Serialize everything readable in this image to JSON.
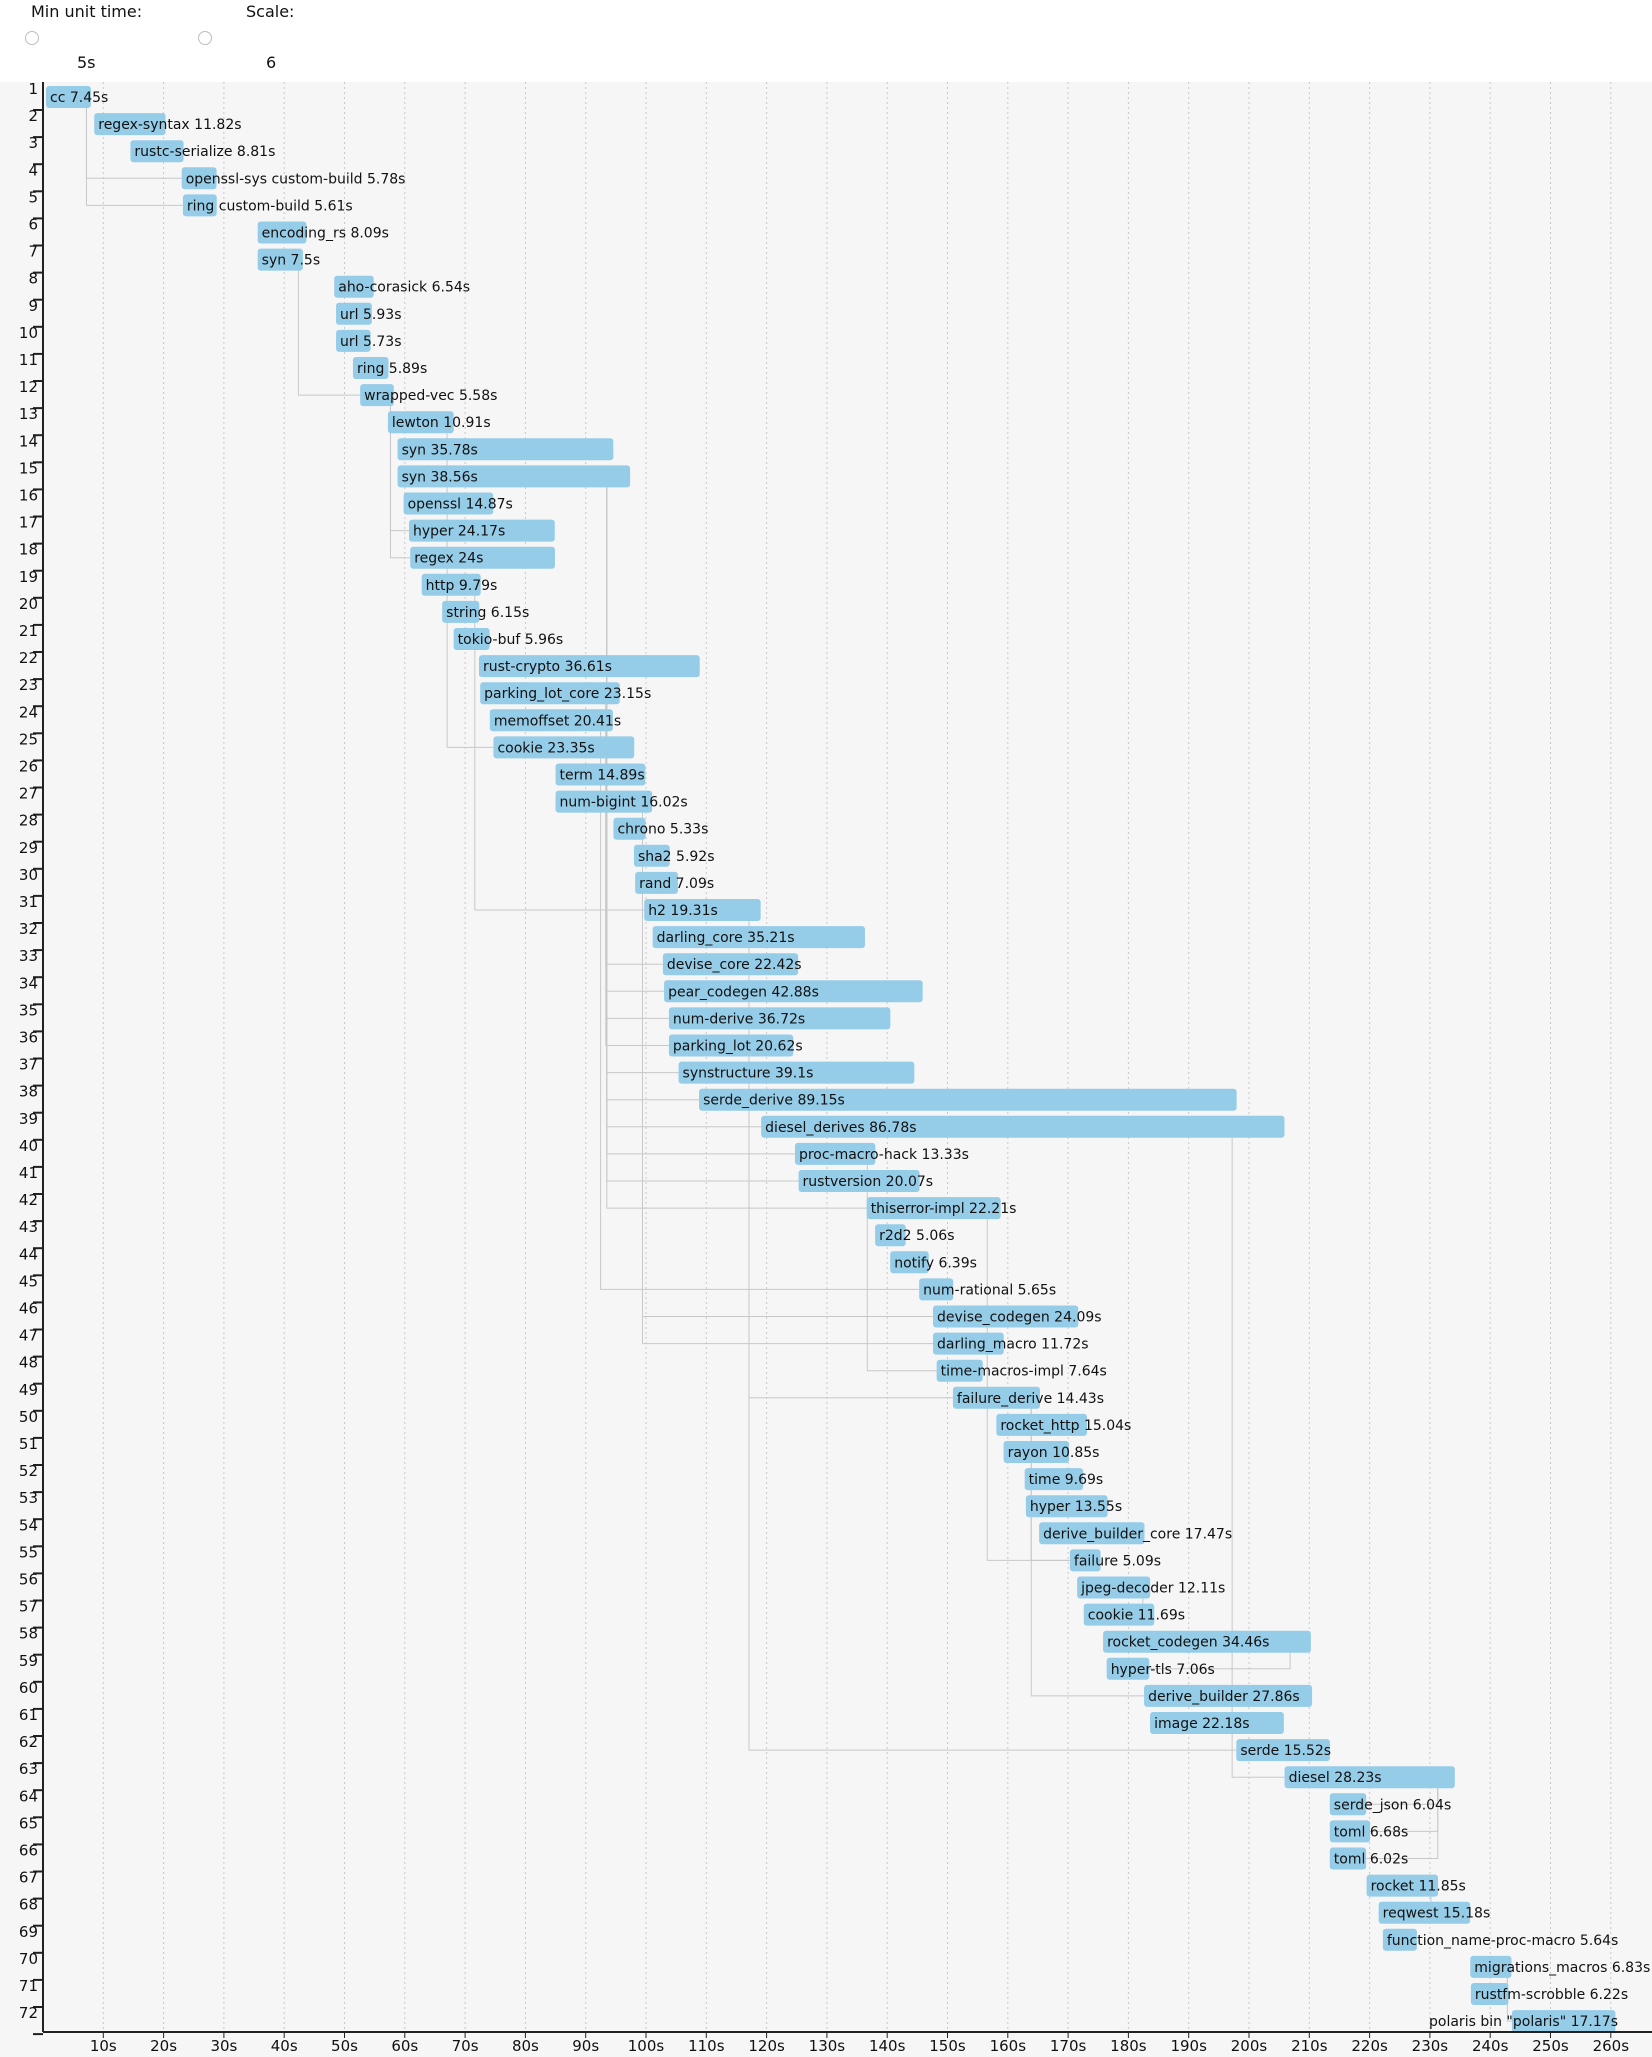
{
  "controls": {
    "min_unit_time_label": "Min unit time:",
    "min_unit_time_value": "5s",
    "scale_label": "Scale:",
    "scale_value": "6"
  },
  "colors": {
    "bar": "#95cce8",
    "background": "#f6f6f6",
    "dependency_line": "#c8c8c8",
    "grid": "#c8c8c8"
  },
  "chart_data": {
    "type": "gantt",
    "title": "",
    "xlabel": "",
    "ylabel": "",
    "xlim": [
      0,
      265
    ],
    "x_ticks": [
      "10s",
      "20s",
      "30s",
      "40s",
      "50s",
      "60s",
      "70s",
      "80s",
      "90s",
      "100s",
      "110s",
      "120s",
      "130s",
      "140s",
      "150s",
      "160s",
      "170s",
      "180s",
      "190s",
      "200s",
      "210s",
      "220s",
      "230s",
      "240s",
      "250s",
      "260s"
    ],
    "x_tick_values": [
      10,
      20,
      30,
      40,
      50,
      60,
      70,
      80,
      90,
      100,
      110,
      120,
      130,
      140,
      150,
      160,
      170,
      180,
      190,
      200,
      210,
      220,
      230,
      240,
      250,
      260
    ],
    "units": [
      {
        "row": 1,
        "name": "cc",
        "start": 0.5,
        "duration": 7.45,
        "label": "cc 7.45s"
      },
      {
        "row": 2,
        "name": "regex-syntax",
        "start": 8.5,
        "duration": 11.82,
        "label": "regex-syntax 11.82s"
      },
      {
        "row": 3,
        "name": "rustc-serialize",
        "start": 14.5,
        "duration": 8.81,
        "label": "rustc-serialize 8.81s"
      },
      {
        "row": 4,
        "name": "openssl-sys custom-build",
        "start": 23.0,
        "duration": 5.78,
        "label": "openssl-sys custom-build 5.78s"
      },
      {
        "row": 5,
        "name": "ring custom-build",
        "start": 23.2,
        "duration": 5.61,
        "label": "ring custom-build 5.61s"
      },
      {
        "row": 6,
        "name": "encoding_rs",
        "start": 35.6,
        "duration": 8.09,
        "label": "encoding_rs 8.09s"
      },
      {
        "row": 7,
        "name": "syn",
        "start": 35.6,
        "duration": 7.5,
        "label": "syn 7.5s"
      },
      {
        "row": 8,
        "name": "aho-corasick",
        "start": 48.3,
        "duration": 6.54,
        "label": "aho-corasick 6.54s"
      },
      {
        "row": 9,
        "name": "url",
        "start": 48.6,
        "duration": 5.93,
        "label": "url 5.93s"
      },
      {
        "row": 10,
        "name": "url",
        "start": 48.6,
        "duration": 5.73,
        "label": "url 5.73s"
      },
      {
        "row": 11,
        "name": "ring",
        "start": 51.4,
        "duration": 5.89,
        "label": "ring 5.89s"
      },
      {
        "row": 12,
        "name": "wrapped-vec",
        "start": 52.6,
        "duration": 5.58,
        "label": "wrapped-vec 5.58s"
      },
      {
        "row": 13,
        "name": "lewton",
        "start": 57.2,
        "duration": 10.91,
        "label": "lewton 10.91s"
      },
      {
        "row": 14,
        "name": "syn",
        "start": 58.8,
        "duration": 35.78,
        "label": "syn 35.78s"
      },
      {
        "row": 15,
        "name": "syn",
        "start": 58.8,
        "duration": 38.56,
        "label": "syn 38.56s"
      },
      {
        "row": 16,
        "name": "openssl",
        "start": 59.8,
        "duration": 14.87,
        "label": "openssl 14.87s"
      },
      {
        "row": 17,
        "name": "hyper",
        "start": 60.7,
        "duration": 24.17,
        "label": "hyper 24.17s"
      },
      {
        "row": 18,
        "name": "regex",
        "start": 60.9,
        "duration": 24.0,
        "label": "regex 24s"
      },
      {
        "row": 19,
        "name": "http",
        "start": 62.8,
        "duration": 9.79,
        "label": "http 9.79s"
      },
      {
        "row": 20,
        "name": "string",
        "start": 66.2,
        "duration": 6.15,
        "label": "string 6.15s"
      },
      {
        "row": 21,
        "name": "tokio-buf",
        "start": 68.1,
        "duration": 5.96,
        "label": "tokio-buf 5.96s"
      },
      {
        "row": 22,
        "name": "rust-crypto",
        "start": 72.3,
        "duration": 36.61,
        "label": "rust-crypto 36.61s"
      },
      {
        "row": 23,
        "name": "parking_lot_core",
        "start": 72.5,
        "duration": 23.15,
        "label": "parking_lot_core 23.15s"
      },
      {
        "row": 24,
        "name": "memoffset",
        "start": 74.1,
        "duration": 20.41,
        "label": "memoffset 20.41s"
      },
      {
        "row": 25,
        "name": "cookie",
        "start": 74.7,
        "duration": 23.35,
        "label": "cookie 23.35s"
      },
      {
        "row": 26,
        "name": "term",
        "start": 85.0,
        "duration": 14.89,
        "label": "term 14.89s"
      },
      {
        "row": 27,
        "name": "num-bigint",
        "start": 85.0,
        "duration": 16.02,
        "label": "num-bigint 16.02s"
      },
      {
        "row": 28,
        "name": "chrono",
        "start": 94.6,
        "duration": 5.33,
        "label": "chrono 5.33s"
      },
      {
        "row": 29,
        "name": "sha2",
        "start": 98.0,
        "duration": 5.92,
        "label": "sha2 5.92s"
      },
      {
        "row": 30,
        "name": "rand",
        "start": 98.2,
        "duration": 7.09,
        "label": "rand 7.09s"
      },
      {
        "row": 31,
        "name": "h2",
        "start": 99.7,
        "duration": 19.31,
        "label": "h2 19.31s"
      },
      {
        "row": 32,
        "name": "darling_core",
        "start": 101.1,
        "duration": 35.21,
        "label": "darling_core 35.21s"
      },
      {
        "row": 33,
        "name": "devise_core",
        "start": 102.8,
        "duration": 22.42,
        "label": "devise_core 22.42s"
      },
      {
        "row": 34,
        "name": "pear_codegen",
        "start": 103.0,
        "duration": 42.88,
        "label": "pear_codegen 42.88s"
      },
      {
        "row": 35,
        "name": "num-derive",
        "start": 103.8,
        "duration": 36.72,
        "label": "num-derive 36.72s"
      },
      {
        "row": 36,
        "name": "parking_lot",
        "start": 103.8,
        "duration": 20.62,
        "label": "parking_lot 20.62s"
      },
      {
        "row": 37,
        "name": "synstructure",
        "start": 105.4,
        "duration": 39.1,
        "label": "synstructure 39.1s"
      },
      {
        "row": 38,
        "name": "serde_derive",
        "start": 108.8,
        "duration": 89.15,
        "label": "serde_derive 89.15s"
      },
      {
        "row": 39,
        "name": "diesel_derives",
        "start": 119.1,
        "duration": 86.78,
        "label": "diesel_derives 86.78s"
      },
      {
        "row": 40,
        "name": "proc-macro-hack",
        "start": 124.7,
        "duration": 13.33,
        "label": "proc-macro-hack 13.33s"
      },
      {
        "row": 41,
        "name": "rustversion",
        "start": 125.3,
        "duration": 20.07,
        "label": "rustversion 20.07s"
      },
      {
        "row": 42,
        "name": "thiserror-impl",
        "start": 136.6,
        "duration": 22.21,
        "label": "thiserror-impl 22.21s"
      },
      {
        "row": 43,
        "name": "r2d2",
        "start": 138.0,
        "duration": 5.06,
        "label": "r2d2 5.06s"
      },
      {
        "row": 44,
        "name": "notify",
        "start": 140.5,
        "duration": 6.39,
        "label": "notify 6.39s"
      },
      {
        "row": 45,
        "name": "num-rational",
        "start": 145.3,
        "duration": 5.65,
        "label": "num-rational 5.65s"
      },
      {
        "row": 46,
        "name": "devise_codegen",
        "start": 147.6,
        "duration": 24.09,
        "label": "devise_codegen 24.09s"
      },
      {
        "row": 47,
        "name": "darling_macro",
        "start": 147.6,
        "duration": 11.72,
        "label": "darling_macro 11.72s"
      },
      {
        "row": 48,
        "name": "time-macros-impl",
        "start": 148.2,
        "duration": 7.64,
        "label": "time-macros-impl 7.64s"
      },
      {
        "row": 49,
        "name": "failure_derive",
        "start": 150.9,
        "duration": 14.43,
        "label": "failure_derive 14.43s"
      },
      {
        "row": 50,
        "name": "rocket_http",
        "start": 158.1,
        "duration": 15.04,
        "label": "rocket_http 15.04s"
      },
      {
        "row": 51,
        "name": "rayon",
        "start": 159.3,
        "duration": 10.85,
        "label": "rayon 10.85s"
      },
      {
        "row": 52,
        "name": "time",
        "start": 162.8,
        "duration": 9.69,
        "label": "time 9.69s"
      },
      {
        "row": 53,
        "name": "hyper",
        "start": 163.0,
        "duration": 13.55,
        "label": "hyper 13.55s"
      },
      {
        "row": 54,
        "name": "derive_builder_core",
        "start": 165.2,
        "duration": 17.47,
        "label": "derive_builder_core 17.47s"
      },
      {
        "row": 55,
        "name": "failure",
        "start": 170.3,
        "duration": 5.09,
        "label": "failure 5.09s"
      },
      {
        "row": 56,
        "name": "jpeg-decoder",
        "start": 171.5,
        "duration": 12.11,
        "label": "jpeg-decoder 12.11s"
      },
      {
        "row": 57,
        "name": "cookie",
        "start": 172.6,
        "duration": 11.69,
        "label": "cookie 11.69s"
      },
      {
        "row": 58,
        "name": "rocket_codegen",
        "start": 175.8,
        "duration": 34.46,
        "label": "rocket_codegen 34.46s"
      },
      {
        "row": 59,
        "name": "hyper-tls",
        "start": 176.4,
        "duration": 7.06,
        "label": "hyper-tls 7.06s"
      },
      {
        "row": 60,
        "name": "derive_builder",
        "start": 182.6,
        "duration": 27.86,
        "label": "derive_builder 27.86s"
      },
      {
        "row": 61,
        "name": "image",
        "start": 183.6,
        "duration": 22.18,
        "label": "image 22.18s"
      },
      {
        "row": 62,
        "name": "serde",
        "start": 197.9,
        "duration": 15.52,
        "label": "serde 15.52s"
      },
      {
        "row": 63,
        "name": "diesel",
        "start": 205.9,
        "duration": 28.23,
        "label": "diesel 28.23s"
      },
      {
        "row": 64,
        "name": "serde_json",
        "start": 213.4,
        "duration": 6.04,
        "label": "serde_json 6.04s"
      },
      {
        "row": 65,
        "name": "toml",
        "start": 213.4,
        "duration": 6.68,
        "label": "toml 6.68s"
      },
      {
        "row": 66,
        "name": "toml",
        "start": 213.4,
        "duration": 6.02,
        "label": "toml 6.02s"
      },
      {
        "row": 67,
        "name": "rocket",
        "start": 219.5,
        "duration": 11.85,
        "label": "rocket 11.85s"
      },
      {
        "row": 68,
        "name": "reqwest",
        "start": 221.5,
        "duration": 15.18,
        "label": "reqwest 15.18s"
      },
      {
        "row": 69,
        "name": "function_name-proc-macro",
        "start": 222.2,
        "duration": 5.64,
        "label": "function_name-proc-macro 5.64s"
      },
      {
        "row": 70,
        "name": "migrations_macros",
        "start": 236.7,
        "duration": 6.83,
        "label": "migrations_macros 6.83s"
      },
      {
        "row": 71,
        "name": "rustfm-scrobble",
        "start": 236.8,
        "duration": 6.22,
        "label": "rustfm-scrobble 6.22s"
      },
      {
        "row": 72,
        "name": "polaris bin \"polaris\"",
        "start": 243.6,
        "duration": 17.17,
        "label": "polaris bin \"polaris\" 17.17s",
        "label_anchor": "end-left"
      }
    ],
    "dependencies": [
      {
        "from": 1,
        "to": 4
      },
      {
        "from": 1,
        "to": 5
      },
      {
        "from": 7,
        "to": 12
      },
      {
        "from": 12,
        "to": 17
      },
      {
        "from": 12,
        "to": 18
      },
      {
        "from": 13,
        "to": 25
      },
      {
        "from": 15,
        "to": 34
      },
      {
        "from": 15,
        "to": 35
      },
      {
        "from": 15,
        "to": 37
      },
      {
        "from": 15,
        "to": 38
      },
      {
        "from": 15,
        "to": 39
      },
      {
        "from": 15,
        "to": 40
      },
      {
        "from": 15,
        "to": 41
      },
      {
        "from": 15,
        "to": 42
      },
      {
        "from": 19,
        "to": 31
      },
      {
        "from": 23,
        "to": 33
      },
      {
        "from": 23,
        "to": 36
      },
      {
        "from": 24,
        "to": 45
      },
      {
        "from": 27,
        "to": 46
      },
      {
        "from": 27,
        "to": 47
      },
      {
        "from": 31,
        "to": 49
      },
      {
        "from": 31,
        "to": 62
      },
      {
        "from": 39,
        "to": 63
      },
      {
        "from": 40,
        "to": 48
      },
      {
        "from": 42,
        "to": 55
      },
      {
        "from": 49,
        "to": 55
      },
      {
        "from": 49,
        "to": 60
      },
      {
        "from": 56,
        "to": 57
      },
      {
        "from": 58,
        "to": 59
      },
      {
        "from": 63,
        "to": 64
      },
      {
        "from": 63,
        "to": 65
      },
      {
        "from": 63,
        "to": 66
      },
      {
        "from": 67,
        "to": 68
      },
      {
        "from": 70,
        "to": 71
      },
      {
        "from": 70,
        "to": 72
      }
    ]
  }
}
